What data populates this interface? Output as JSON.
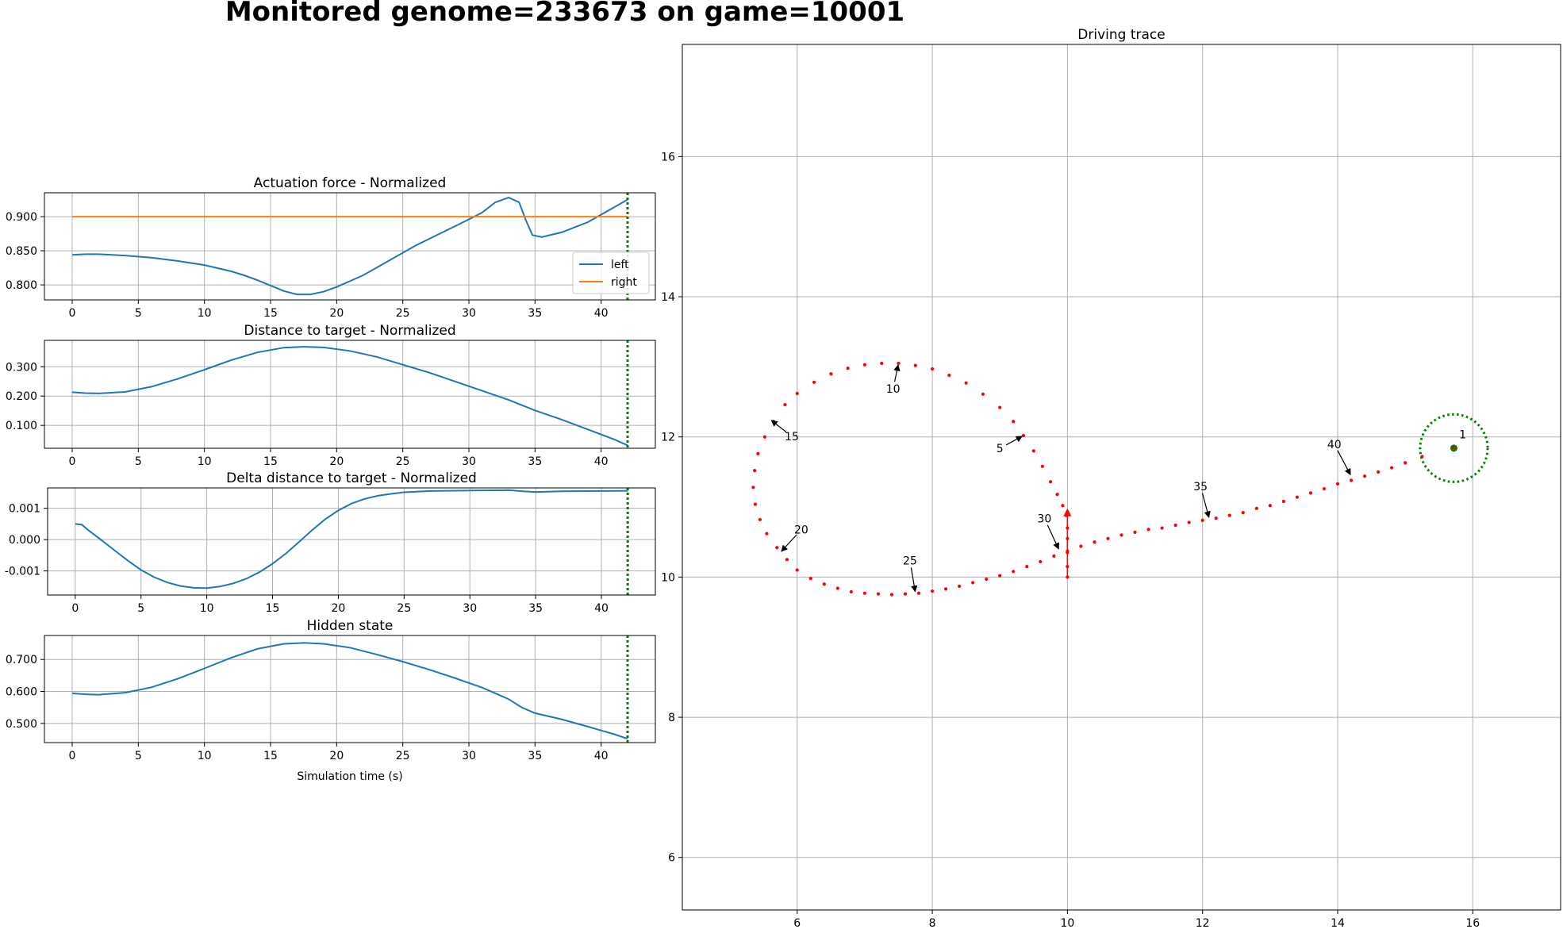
{
  "suptitle": "Monitored genome=233673 on game=10001",
  "chart_data": [
    {
      "type": "line",
      "title": "Actuation force - Normalized",
      "xlim": [
        -2.1,
        44.1
      ],
      "ylim": [
        0.778,
        0.935
      ],
      "xticks": [
        0,
        5,
        10,
        15,
        20,
        25,
        30,
        35,
        40
      ],
      "yticks": [
        0.8,
        0.85,
        0.9
      ],
      "ytick_labels": [
        "0.800",
        "0.850",
        "0.900"
      ],
      "grid": true,
      "legend": {
        "placement": "lower-right",
        "entries": [
          "left",
          "right"
        ]
      },
      "marker_line": {
        "x": 42.0,
        "color": "#008000",
        "style": "dotted"
      },
      "series": [
        {
          "name": "left",
          "color": "#1f77b4",
          "points": [
            [
              0,
              0.844
            ],
            [
              1,
              0.845
            ],
            [
              2,
              0.845
            ],
            [
              4,
              0.843
            ],
            [
              6,
              0.84
            ],
            [
              8,
              0.835
            ],
            [
              10,
              0.829
            ],
            [
              12,
              0.82
            ],
            [
              13,
              0.814
            ],
            [
              14,
              0.807
            ],
            [
              15,
              0.799
            ],
            [
              16,
              0.791
            ],
            [
              17,
              0.786
            ],
            [
              18,
              0.786
            ],
            [
              19,
              0.79
            ],
            [
              20,
              0.797
            ],
            [
              22,
              0.814
            ],
            [
              24,
              0.836
            ],
            [
              26,
              0.858
            ],
            [
              28,
              0.877
            ],
            [
              30,
              0.896
            ],
            [
              31,
              0.906
            ],
            [
              32,
              0.921
            ],
            [
              33,
              0.928
            ],
            [
              33.8,
              0.921
            ],
            [
              34.3,
              0.895
            ],
            [
              34.8,
              0.873
            ],
            [
              35.5,
              0.87
            ],
            [
              37,
              0.877
            ],
            [
              39,
              0.892
            ],
            [
              41,
              0.914
            ],
            [
              42,
              0.925
            ]
          ]
        },
        {
          "name": "right",
          "color": "#ff7f0e",
          "points": [
            [
              0,
              0.9
            ],
            [
              42,
              0.9
            ]
          ]
        }
      ]
    },
    {
      "type": "line",
      "title": "Distance to target - Normalized",
      "xlim": [
        -2.1,
        44.1
      ],
      "ylim": [
        0.022,
        0.39
      ],
      "xticks": [
        0,
        5,
        10,
        15,
        20,
        25,
        30,
        35,
        40
      ],
      "yticks": [
        0.1,
        0.2,
        0.3
      ],
      "ytick_labels": [
        "0.100",
        "0.200",
        "0.300"
      ],
      "grid": true,
      "marker_line": {
        "x": 42.0,
        "color": "#008000",
        "style": "dotted"
      },
      "series": [
        {
          "name": "",
          "color": "#1f77b4",
          "points": [
            [
              0,
              0.213
            ],
            [
              1,
              0.21
            ],
            [
              2,
              0.209
            ],
            [
              4,
              0.214
            ],
            [
              6,
              0.232
            ],
            [
              8,
              0.259
            ],
            [
              10,
              0.29
            ],
            [
              12,
              0.322
            ],
            [
              14,
              0.349
            ],
            [
              16,
              0.365
            ],
            [
              17.5,
              0.368
            ],
            [
              19,
              0.366
            ],
            [
              21,
              0.354
            ],
            [
              23,
              0.334
            ],
            [
              25,
              0.307
            ],
            [
              27,
              0.28
            ],
            [
              29,
              0.249
            ],
            [
              31,
              0.218
            ],
            [
              33,
              0.187
            ],
            [
              35,
              0.151
            ],
            [
              37,
              0.12
            ],
            [
              39,
              0.086
            ],
            [
              41,
              0.052
            ],
            [
              42,
              0.032
            ]
          ]
        }
      ]
    },
    {
      "type": "line",
      "title": "Delta distance to target - Normalized",
      "xlim": [
        -2.1,
        44.1
      ],
      "ylim": [
        -0.00177,
        0.00165
      ],
      "xticks": [
        0,
        5,
        10,
        15,
        20,
        25,
        30,
        35,
        40
      ],
      "yticks": [
        -0.001,
        0.0,
        0.001
      ],
      "ytick_labels": [
        "-0.001",
        "0.000",
        "0.001"
      ],
      "grid": true,
      "marker_line": {
        "x": 42.0,
        "color": "#008000",
        "style": "dotted"
      },
      "series": [
        {
          "name": "",
          "color": "#1f77b4",
          "points": [
            [
              0,
              0.0005
            ],
            [
              0.5,
              0.00048
            ],
            [
              1,
              0.0003
            ],
            [
              2,
              -2e-05
            ],
            [
              3,
              -0.00035
            ],
            [
              4,
              -0.00067
            ],
            [
              5,
              -0.00097
            ],
            [
              6,
              -0.0012
            ],
            [
              7,
              -0.00137
            ],
            [
              8,
              -0.00148
            ],
            [
              9,
              -0.00154
            ],
            [
              10,
              -0.00155
            ],
            [
              11,
              -0.0015
            ],
            [
              12,
              -0.0014
            ],
            [
              13,
              -0.00125
            ],
            [
              14,
              -0.00104
            ],
            [
              15,
              -0.00077
            ],
            [
              16,
              -0.00045
            ],
            [
              17,
              -8e-05
            ],
            [
              18,
              0.0003
            ],
            [
              19,
              0.00065
            ],
            [
              20,
              0.00093
            ],
            [
              21,
              0.00115
            ],
            [
              22,
              0.0013
            ],
            [
              23,
              0.0014
            ],
            [
              24,
              0.00146
            ],
            [
              25,
              0.00151
            ],
            [
              27,
              0.00155
            ],
            [
              30,
              0.00157
            ],
            [
              33,
              0.00158
            ],
            [
              34,
              0.00154
            ],
            [
              35,
              0.00152
            ],
            [
              37,
              0.00154
            ],
            [
              40,
              0.00155
            ],
            [
              42,
              0.00156
            ]
          ]
        }
      ]
    },
    {
      "type": "line",
      "title": "Hidden state",
      "xlabel": "Simulation time (s)",
      "xlim": [
        -2.1,
        44.1
      ],
      "ylim": [
        0.44,
        0.775
      ],
      "xticks": [
        0,
        5,
        10,
        15,
        20,
        25,
        30,
        35,
        40
      ],
      "yticks": [
        0.5,
        0.6,
        0.7
      ],
      "ytick_labels": [
        "0.500",
        "0.600",
        "0.700"
      ],
      "grid": true,
      "marker_line": {
        "x": 42.0,
        "color": "#008000",
        "style": "dotted"
      },
      "series": [
        {
          "name": "",
          "color": "#1f77b4",
          "points": [
            [
              0,
              0.594
            ],
            [
              1,
              0.591
            ],
            [
              2,
              0.59
            ],
            [
              4,
              0.596
            ],
            [
              6,
              0.613
            ],
            [
              8,
              0.64
            ],
            [
              10,
              0.672
            ],
            [
              12,
              0.705
            ],
            [
              14,
              0.733
            ],
            [
              16,
              0.749
            ],
            [
              17.5,
              0.752
            ],
            [
              19,
              0.749
            ],
            [
              21,
              0.737
            ],
            [
              23,
              0.716
            ],
            [
              25,
              0.693
            ],
            [
              27,
              0.668
            ],
            [
              29,
              0.641
            ],
            [
              31,
              0.612
            ],
            [
              33,
              0.576
            ],
            [
              34,
              0.55
            ],
            [
              35,
              0.532
            ],
            [
              37,
              0.513
            ],
            [
              39,
              0.49
            ],
            [
              41,
              0.466
            ],
            [
              42,
              0.452
            ]
          ]
        }
      ]
    },
    {
      "type": "scatter",
      "title": "Driving trace",
      "xlim": [
        4.3,
        17.3
      ],
      "ylim": [
        5.25,
        17.6
      ],
      "xticks": [
        6,
        8,
        10,
        12,
        14,
        16
      ],
      "yticks": [
        6,
        8,
        10,
        12,
        14,
        16
      ],
      "grid": true,
      "trace_color": "#ff0000",
      "trace": [
        [
          15.72,
          11.84
        ],
        [
          15.25,
          11.72
        ],
        [
          15.0,
          11.63
        ],
        [
          14.8,
          11.56
        ],
        [
          14.6,
          11.5
        ],
        [
          14.4,
          11.44
        ],
        [
          14.2,
          11.38
        ],
        [
          14.0,
          11.33
        ],
        [
          13.8,
          11.26
        ],
        [
          13.6,
          11.2
        ],
        [
          13.4,
          11.14
        ],
        [
          13.2,
          11.08
        ],
        [
          13.0,
          11.02
        ],
        [
          12.8,
          10.98
        ],
        [
          12.6,
          10.92
        ],
        [
          12.4,
          10.88
        ],
        [
          12.2,
          10.84
        ],
        [
          12.0,
          10.81
        ],
        [
          11.8,
          10.78
        ],
        [
          11.6,
          10.74
        ],
        [
          11.4,
          10.7
        ],
        [
          11.2,
          10.68
        ],
        [
          11.0,
          10.64
        ],
        [
          10.8,
          10.6
        ],
        [
          10.6,
          10.55
        ],
        [
          10.4,
          10.5
        ],
        [
          10.2,
          10.44
        ],
        [
          10.0,
          10.37
        ],
        [
          9.8,
          10.3
        ],
        [
          9.6,
          10.22
        ],
        [
          9.4,
          10.15
        ],
        [
          9.2,
          10.08
        ],
        [
          9.0,
          10.02
        ],
        [
          8.8,
          9.97
        ],
        [
          8.6,
          9.92
        ],
        [
          8.4,
          9.87
        ],
        [
          8.2,
          9.83
        ],
        [
          8.0,
          9.8
        ],
        [
          7.8,
          9.77
        ],
        [
          7.6,
          9.76
        ],
        [
          7.4,
          9.75
        ],
        [
          7.2,
          9.76
        ],
        [
          7.0,
          9.77
        ],
        [
          6.8,
          9.79
        ],
        [
          6.6,
          9.84
        ],
        [
          6.4,
          9.9
        ],
        [
          6.2,
          9.98
        ],
        [
          6.0,
          10.1
        ],
        [
          5.85,
          10.25
        ],
        [
          5.7,
          10.42
        ],
        [
          5.55,
          10.62
        ],
        [
          5.45,
          10.82
        ],
        [
          5.38,
          11.04
        ],
        [
          5.35,
          11.28
        ],
        [
          5.37,
          11.52
        ],
        [
          5.42,
          11.76
        ],
        [
          5.52,
          12.0
        ],
        [
          5.65,
          12.22
        ],
        [
          5.82,
          12.46
        ],
        [
          6.0,
          12.62
        ],
        [
          6.25,
          12.78
        ],
        [
          6.5,
          12.9
        ],
        [
          6.75,
          12.98
        ],
        [
          7.0,
          13.03
        ],
        [
          7.25,
          13.05
        ],
        [
          7.5,
          13.05
        ],
        [
          7.75,
          13.02
        ],
        [
          8.0,
          12.97
        ],
        [
          8.25,
          12.88
        ],
        [
          8.5,
          12.77
        ],
        [
          8.75,
          12.61
        ],
        [
          9.0,
          12.42
        ],
        [
          9.2,
          12.22
        ],
        [
          9.35,
          12.02
        ],
        [
          9.5,
          11.8
        ],
        [
          9.63,
          11.58
        ],
        [
          9.75,
          11.36
        ],
        [
          9.85,
          11.18
        ],
        [
          9.93,
          11.02
        ],
        [
          9.98,
          10.88
        ],
        [
          10.0,
          10.7
        ],
        [
          10.0,
          10.55
        ],
        [
          10.0,
          10.35
        ],
        [
          10.0,
          10.15
        ],
        [
          10.0,
          10.0
        ]
      ],
      "heading_arrow": {
        "from": [
          10.0,
          10.0
        ],
        "to": [
          10.0,
          10.98
        ],
        "color": "#ff0000"
      },
      "target": {
        "x": 15.72,
        "y": 11.84,
        "radius": 0.5,
        "color": "#008000"
      },
      "annotations": [
        {
          "label": "1",
          "x": 15.72,
          "y": 11.84,
          "tx": 15.85,
          "ty": 11.98,
          "arrow": false
        },
        {
          "label": "5",
          "x": 9.35,
          "y": 12.02,
          "tx": 9.0,
          "ty": 11.78,
          "arrow": true
        },
        {
          "label": "10",
          "x": 7.5,
          "y": 13.05,
          "tx": 7.42,
          "ty": 12.63,
          "arrow": true
        },
        {
          "label": "15",
          "x": 5.6,
          "y": 12.25,
          "tx": 5.92,
          "ty": 11.95,
          "arrow": true
        },
        {
          "label": "20",
          "x": 5.75,
          "y": 10.35,
          "tx": 6.06,
          "ty": 10.62,
          "arrow": true
        },
        {
          "label": "25",
          "x": 7.75,
          "y": 9.77,
          "tx": 7.67,
          "ty": 10.18,
          "arrow": true
        },
        {
          "label": "30",
          "x": 9.88,
          "y": 10.38,
          "tx": 9.66,
          "ty": 10.78,
          "arrow": true
        },
        {
          "label": "35",
          "x": 12.1,
          "y": 10.83,
          "tx": 11.97,
          "ty": 11.24,
          "arrow": true
        },
        {
          "label": "40",
          "x": 14.2,
          "y": 11.44,
          "tx": 13.95,
          "ty": 11.84,
          "arrow": true
        }
      ]
    }
  ]
}
